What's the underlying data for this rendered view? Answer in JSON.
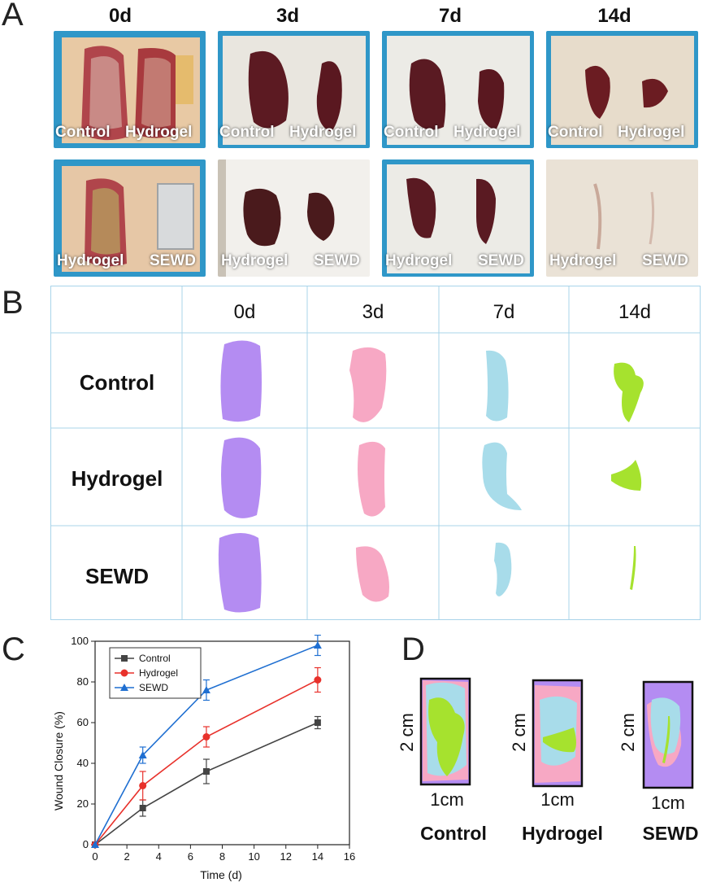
{
  "panels": {
    "a": "A",
    "b": "B",
    "c": "C",
    "d": "D"
  },
  "days": [
    "0d",
    "3d",
    "7d",
    "14d"
  ],
  "panelA": {
    "row1": {
      "left": "Control",
      "right": "Hydrogel"
    },
    "row2": {
      "left": "Hydrogel",
      "right": "SEWD"
    }
  },
  "panelB": {
    "rows": [
      "Control",
      "Hydrogel",
      "SEWD"
    ],
    "colors": [
      "#b48cf2",
      "#f7a8c4",
      "#a8dcea",
      "#a6e22e"
    ]
  },
  "panelD": {
    "height_label": "2 cm",
    "width_label": "1cm",
    "groups": [
      "Control",
      "Hydrogel",
      "SEWD"
    ]
  },
  "chart_data": {
    "type": "line",
    "xlabel": "Time (d)",
    "ylabel": "Wound Closure (%)",
    "xlim": [
      0,
      16
    ],
    "ylim": [
      0,
      100
    ],
    "xticks": [
      0,
      2,
      4,
      6,
      8,
      10,
      12,
      14,
      16
    ],
    "yticks": [
      0,
      20,
      40,
      60,
      80,
      100
    ],
    "legend_position": "top-left",
    "x": [
      0,
      3,
      7,
      14
    ],
    "series": [
      {
        "name": "Control",
        "color": "#444444",
        "marker": "square",
        "values": [
          0,
          18,
          36,
          60
        ],
        "errors": [
          0,
          4,
          6,
          3
        ]
      },
      {
        "name": "Hydrogel",
        "color": "#e8312b",
        "marker": "circle",
        "values": [
          0,
          29,
          53,
          81
        ],
        "errors": [
          0,
          7,
          5,
          6
        ]
      },
      {
        "name": "SEWD",
        "color": "#1f6fd1",
        "marker": "triangle",
        "values": [
          0,
          44,
          76,
          98
        ],
        "errors": [
          0,
          4,
          5,
          5
        ]
      }
    ]
  }
}
